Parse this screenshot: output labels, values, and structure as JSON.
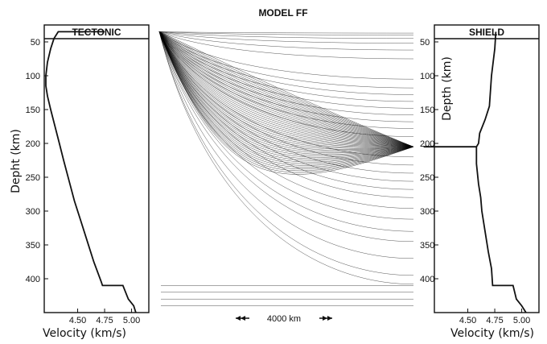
{
  "chart_data": [
    {
      "type": "line",
      "panel": "left",
      "title": "TECTONIC",
      "xlabel": "Velocity (km/s)",
      "ylabel": "Depht (km)",
      "xticks": [
        "4.50",
        "4.75",
        "5.00"
      ],
      "yticks": [
        "50",
        "100",
        "150",
        "200",
        "250",
        "300",
        "350",
        "400"
      ],
      "xlim": [
        4.19,
        5.16
      ],
      "ylim": [
        25,
        450
      ],
      "y_inverted": true,
      "profile": [
        [
          4.75,
          35
        ],
        [
          4.32,
          35
        ],
        [
          4.28,
          45
        ],
        [
          4.25,
          60
        ],
        [
          4.22,
          80
        ],
        [
          4.205,
          100
        ],
        [
          4.205,
          115
        ],
        [
          4.22,
          130
        ],
        [
          4.25,
          150
        ],
        [
          4.29,
          175
        ],
        [
          4.33,
          200
        ],
        [
          4.37,
          225
        ],
        [
          4.42,
          255
        ],
        [
          4.47,
          285
        ],
        [
          4.53,
          315
        ],
        [
          4.59,
          345
        ],
        [
          4.65,
          375
        ],
        [
          4.72,
          405
        ],
        [
          4.73,
          410
        ],
        [
          4.92,
          410
        ],
        [
          4.97,
          430
        ],
        [
          5.02,
          440
        ],
        [
          5.04,
          450
        ]
      ]
    },
    {
      "type": "line",
      "panel": "right",
      "title": "SHIELD",
      "xlabel": "Velocity (km/s)",
      "ylabel": "Depth (km)",
      "xticks": [
        "4.50",
        "4.75",
        "5.00"
      ],
      "yticks": [
        "50",
        "100",
        "150",
        "200",
        "250",
        "300",
        "350",
        "400"
      ],
      "xlim": [
        4.19,
        5.16
      ],
      "ylim": [
        25,
        450
      ],
      "y_inverted": true,
      "profile": [
        [
          4.76,
          35
        ],
        [
          4.75,
          60
        ],
        [
          4.72,
          100
        ],
        [
          4.7,
          145
        ],
        [
          4.66,
          165
        ],
        [
          4.61,
          185
        ],
        [
          4.6,
          200
        ],
        [
          4.58,
          205
        ],
        [
          4.09,
          205
        ],
        [
          4.58,
          205
        ],
        [
          4.58,
          230
        ],
        [
          4.6,
          260
        ],
        [
          4.62,
          280
        ],
        [
          4.63,
          300
        ],
        [
          4.66,
          330
        ],
        [
          4.69,
          360
        ],
        [
          4.72,
          385
        ],
        [
          4.73,
          410
        ],
        [
          4.92,
          410
        ],
        [
          4.95,
          430
        ],
        [
          5.0,
          440
        ],
        [
          5.04,
          450
        ]
      ]
    },
    {
      "type": "line",
      "panel": "center",
      "title": "MODEL FF",
      "annotation": "4000 km",
      "source_depth_km": 35,
      "focus_depth_km": 205,
      "ray_groups": [
        {
          "name": "near-surface",
          "count": 6,
          "end_depths": [
            37,
            40,
            45,
            52,
            62,
            75
          ]
        },
        {
          "name": "mid-upper",
          "count": 9,
          "end_depths": [
            105,
            118,
            128,
            138,
            148,
            158,
            168,
            178,
            190
          ]
        },
        {
          "name": "focused",
          "count": 45,
          "end_depths": [
            205
          ]
        },
        {
          "name": "mid-lower",
          "count": 10,
          "end_depths": [
            220,
            232,
            244,
            256,
            268,
            280,
            296,
            312,
            330,
            345
          ]
        },
        {
          "name": "deep",
          "count": 3,
          "end_depths": [
            370,
            395,
            408
          ]
        },
        {
          "name": "bottom-flat",
          "count": 4,
          "end_depths": [
            410,
            420,
            430,
            440
          ]
        }
      ]
    }
  ]
}
